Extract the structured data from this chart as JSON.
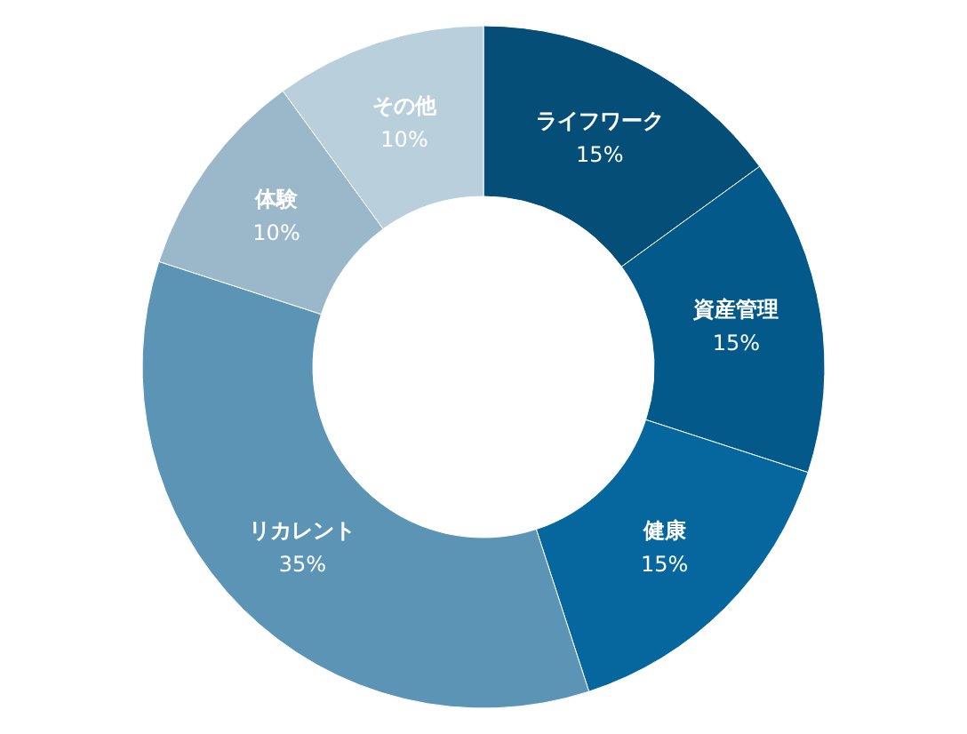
{
  "chart_data": {
    "type": "donut",
    "categories": [
      "ライフワーク",
      "資産管理",
      "健康",
      "リカレント",
      "体験",
      "その他"
    ],
    "values": [
      15,
      15,
      15,
      35,
      10,
      10
    ],
    "colors": [
      "#044e78",
      "#035a8a",
      "#05679e",
      "#5c94b6",
      "#9bb8ca",
      "#b9d0dc"
    ],
    "value_labels": [
      "15%",
      "15%",
      "15%",
      "35%",
      "10%",
      "10%"
    ]
  }
}
